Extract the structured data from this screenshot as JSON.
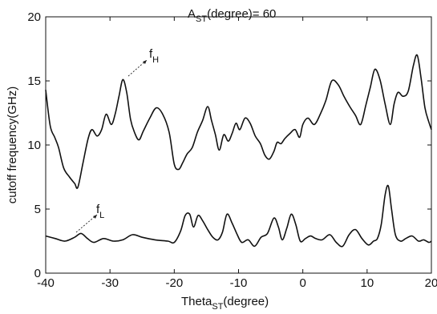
{
  "chart_data": {
    "type": "line",
    "title_main": "A",
    "title_sub": "ST",
    "title_rest": "(degree)= 60",
    "xlabel_main": "Theta",
    "xlabel_sub": "ST",
    "xlabel_rest": "(degree)",
    "ylabel": "cutoff frequency(GHz)",
    "xlim": [
      -40,
      20
    ],
    "ylim": [
      0,
      20
    ],
    "xticks": [
      "-40",
      "-30",
      "-20",
      "-10",
      "0",
      "10",
      "20"
    ],
    "yticks": [
      "0",
      "5",
      "10",
      "15",
      "20"
    ],
    "grid": false,
    "series": [
      {
        "name": "fH",
        "label_main": "f",
        "label_sub": "H",
        "x": [
          -40,
          -39.3,
          -38.6,
          -38,
          -37.2,
          -36.3,
          -35.5,
          -35,
          -34.2,
          -33.4,
          -32.8,
          -32,
          -31.3,
          -30.6,
          -29.8,
          -29.2,
          -28.6,
          -28,
          -27.4,
          -26.8,
          -26.2,
          -25.5,
          -24.8,
          -23.8,
          -22.8,
          -21.8,
          -20.8,
          -20,
          -19.3,
          -18.7,
          -18,
          -17.2,
          -16.4,
          -15.6,
          -14.8,
          -14.2,
          -13.6,
          -13,
          -12.3,
          -11.6,
          -11,
          -10.4,
          -9.8,
          -9,
          -8.2,
          -7.4,
          -6.6,
          -5.9,
          -5.2,
          -4.5,
          -4,
          -3.4,
          -2.8,
          -2,
          -1.2,
          -0.5,
          0,
          0.8,
          1.8,
          2.8,
          3.6,
          4.5,
          5.5,
          6.4,
          7.3,
          8.2,
          9,
          9.8,
          10.5,
          11.2,
          12,
          12.8,
          13.6,
          14.2,
          14.8,
          15.6,
          16.4,
          17.2,
          17.8,
          18.4,
          19,
          19.6,
          20
        ],
        "y": [
          14.3,
          11.5,
          10.6,
          9.8,
          8.2,
          7.5,
          7.0,
          6.7,
          8.6,
          10.5,
          11.2,
          10.7,
          11.2,
          12.4,
          11.6,
          12.4,
          13.8,
          15.1,
          14.1,
          12.0,
          11.0,
          10.4,
          11.1,
          12.1,
          12.9,
          12.4,
          11.0,
          8.5,
          8.1,
          8.6,
          9.3,
          9.8,
          11.0,
          11.9,
          13.0,
          11.9,
          10.8,
          9.6,
          10.8,
          10.3,
          10.9,
          11.7,
          11.2,
          12.1,
          11.7,
          10.7,
          10.1,
          9.2,
          8.9,
          9.5,
          10.2,
          10.1,
          10.5,
          10.9,
          11.2,
          10.6,
          11.6,
          12.1,
          11.6,
          12.5,
          13.5,
          15.0,
          14.7,
          13.8,
          13.0,
          12.3,
          11.6,
          13.1,
          14.5,
          15.9,
          15.1,
          13.2,
          11.6,
          13.2,
          14.1,
          13.8,
          14.2,
          16.2,
          17.0,
          15.2,
          12.9,
          11.8,
          11.2
        ]
      },
      {
        "name": "fL",
        "label_main": "f",
        "label_sub": "L",
        "x": [
          -40,
          -38.5,
          -37,
          -35.5,
          -34.5,
          -33.5,
          -32.5,
          -31,
          -29.5,
          -28,
          -26.5,
          -25,
          -23,
          -21,
          -20,
          -19,
          -18.3,
          -17.6,
          -17,
          -16.3,
          -15.6,
          -14.8,
          -14,
          -13.2,
          -12.5,
          -11.8,
          -11,
          -10.2,
          -9.5,
          -8.5,
          -7.5,
          -6.5,
          -5.5,
          -4.5,
          -3.8,
          -3.2,
          -2.5,
          -1.8,
          -1.1,
          -0.4,
          0.4,
          1.2,
          2,
          3,
          4.2,
          5.2,
          6.2,
          7.2,
          8.2,
          9.2,
          10.2,
          11,
          11.6,
          12.2,
          12.8,
          13.3,
          13.8,
          14.4,
          15.2,
          16,
          17,
          18,
          18.8,
          19.6,
          20
        ],
        "y": [
          2.9,
          2.7,
          2.5,
          2.8,
          3.1,
          2.7,
          2.4,
          2.7,
          2.5,
          2.6,
          3.0,
          2.8,
          2.6,
          2.5,
          2.4,
          3.3,
          4.5,
          4.6,
          3.6,
          4.5,
          4.1,
          3.4,
          2.8,
          2.6,
          3.2,
          4.6,
          3.9,
          3.0,
          2.4,
          2.6,
          2.1,
          2.8,
          3.1,
          4.3,
          3.6,
          2.6,
          3.5,
          4.6,
          3.8,
          2.5,
          2.7,
          2.9,
          2.7,
          2.6,
          3.0,
          2.4,
          2.1,
          3.0,
          3.4,
          2.7,
          2.2,
          2.5,
          2.7,
          3.8,
          6.1,
          6.8,
          5.0,
          3.0,
          2.5,
          2.7,
          2.9,
          2.5,
          2.6,
          2.4,
          2.5
        ]
      }
    ]
  }
}
